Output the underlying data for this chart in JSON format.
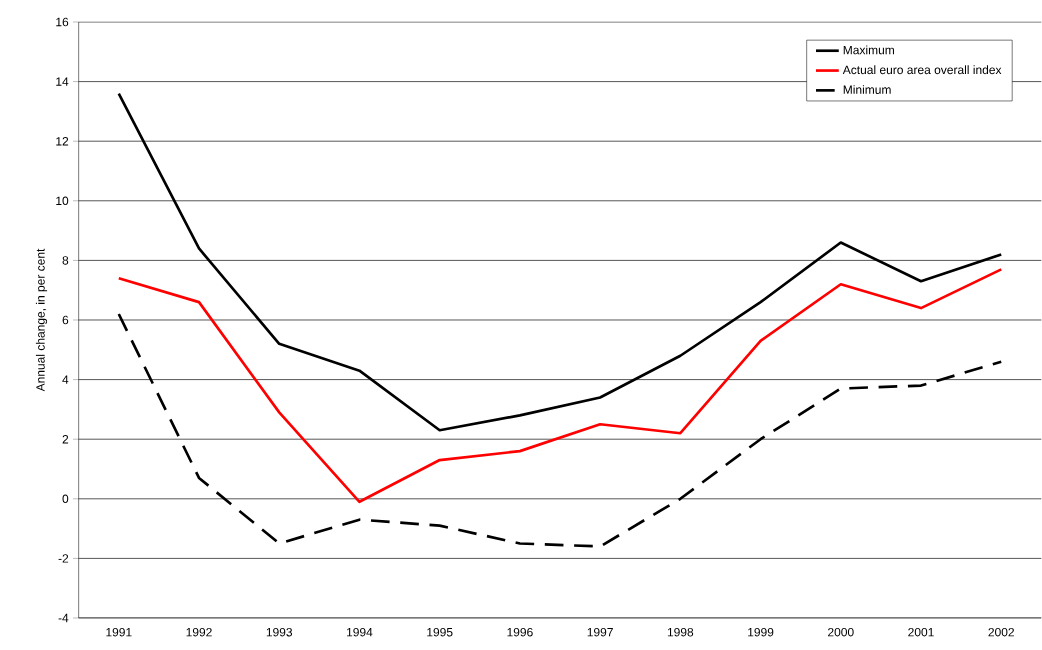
{
  "chart_data": {
    "type": "line",
    "ylabel": "Annual change, in per cent",
    "categories": [
      "1991",
      "1992",
      "1993",
      "1994",
      "1995",
      "1996",
      "1997",
      "1998",
      "1999",
      "2000",
      "2001",
      "2002"
    ],
    "series": [
      {
        "name": "Maximum",
        "color": "#000000",
        "line_style": "solid",
        "values": [
          13.6,
          8.4,
          5.2,
          4.3,
          2.3,
          2.8,
          3.4,
          4.8,
          6.6,
          8.6,
          7.3,
          8.2
        ]
      },
      {
        "name": "Actual euro area overall index",
        "color": "#ff0000",
        "line_style": "solid",
        "values": [
          7.4,
          6.6,
          2.9,
          -0.1,
          1.3,
          1.6,
          2.5,
          2.2,
          5.3,
          7.2,
          6.4,
          7.7
        ]
      },
      {
        "name": "Minimum",
        "color": "#000000",
        "line_style": "dashed",
        "values": [
          6.2,
          0.7,
          -1.5,
          -0.7,
          -0.9,
          -1.5,
          -1.6,
          0.0,
          2.0,
          3.7,
          3.8,
          4.6
        ]
      }
    ],
    "ylim": [
      -4,
      16
    ],
    "yticks": [
      -4,
      -2,
      0,
      2,
      4,
      6,
      8,
      10,
      12,
      14,
      16
    ],
    "grid": "y",
    "legend": "top right",
    "marker": "none"
  }
}
